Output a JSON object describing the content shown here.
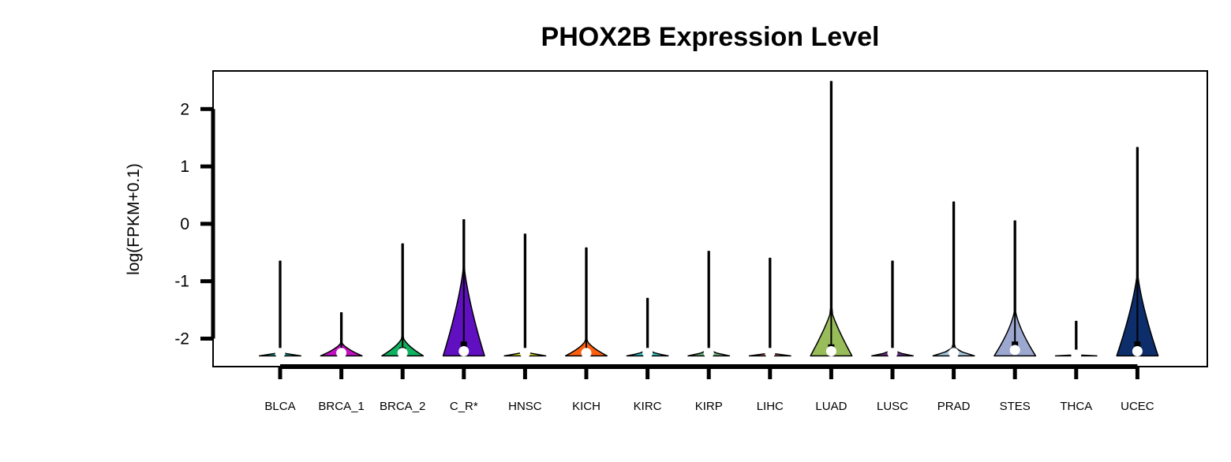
{
  "chart_data": {
    "type": "violin",
    "title": "PHOX2B Expression Level",
    "ylabel": "log(FPKM+0.1)",
    "xlabel": "",
    "ylim": [
      -2.5,
      2.65
    ],
    "yticks": [
      -2,
      -1,
      0,
      1,
      2
    ],
    "grid": false,
    "legend": "none",
    "categories": [
      "BLCA",
      "BRCA_1",
      "BRCA_2",
      "C_R*",
      "HNSC",
      "KICH",
      "KIRC",
      "KIRP",
      "LIHC",
      "LUAD",
      "LUSC",
      "PRAD",
      "STES",
      "THCA",
      "UCEC"
    ],
    "series": [
      {
        "category": "BLCA",
        "color": "#20B2AA",
        "min": -2.3,
        "max": -0.65,
        "median": -2.25,
        "q1": -2.3,
        "q3": -2.25,
        "bulk_top": -2.2,
        "width": 0.82,
        "shape": 2.5
      },
      {
        "category": "BRCA_1",
        "color": "#C010C0",
        "min": -2.3,
        "max": -1.55,
        "median": -2.25,
        "q1": -2.3,
        "q3": -2.25,
        "bulk_top": -2.05,
        "width": 0.82,
        "shape": 1.6
      },
      {
        "category": "BRCA_2",
        "color": "#10B060",
        "min": -2.3,
        "max": -0.35,
        "median": -2.25,
        "q1": -2.3,
        "q3": -2.15,
        "bulk_top": -1.95,
        "width": 0.82,
        "shape": 1.6
      },
      {
        "category": "C_R*",
        "color": "#6010C0",
        "min": -2.3,
        "max": 0.07,
        "median": -2.22,
        "q1": -2.28,
        "q3": -2.05,
        "bulk_top": -0.65,
        "width": 0.82,
        "shape": 1.4
      },
      {
        "category": "HNSC",
        "color": "#F0F020",
        "min": -2.3,
        "max": -0.18,
        "median": -2.25,
        "q1": -2.3,
        "q3": -2.25,
        "bulk_top": -2.2,
        "width": 0.82,
        "shape": 2.5
      },
      {
        "category": "KICH",
        "color": "#FF6010",
        "min": -2.3,
        "max": -0.42,
        "median": -2.25,
        "q1": -2.3,
        "q3": -2.2,
        "bulk_top": -2.0,
        "width": 0.82,
        "shape": 1.6
      },
      {
        "category": "KIRC",
        "color": "#30C8C8",
        "min": -2.3,
        "max": -1.3,
        "median": -2.25,
        "q1": -2.3,
        "q3": -2.25,
        "bulk_top": -2.15,
        "width": 0.82,
        "shape": 2.5
      },
      {
        "category": "KIRP",
        "color": "#70B880",
        "min": -2.3,
        "max": -0.48,
        "median": -2.25,
        "q1": -2.3,
        "q3": -2.25,
        "bulk_top": -2.15,
        "width": 0.82,
        "shape": 2.5
      },
      {
        "category": "LIHC",
        "color": "#E07070",
        "min": -2.3,
        "max": -0.6,
        "median": -2.25,
        "q1": -2.3,
        "q3": -2.25,
        "bulk_top": -2.22,
        "width": 0.82,
        "shape": 3.0
      },
      {
        "category": "LUAD",
        "color": "#98BC5A",
        "min": -2.3,
        "max": 2.48,
        "median": -2.22,
        "q1": -2.28,
        "q3": -2.1,
        "bulk_top": -1.5,
        "width": 0.82,
        "shape": 1.2
      },
      {
        "category": "LUSC",
        "color": "#6A2E8E",
        "min": -2.3,
        "max": -0.65,
        "median": -2.25,
        "q1": -2.3,
        "q3": -2.25,
        "bulk_top": -2.15,
        "width": 0.82,
        "shape": 2.5
      },
      {
        "category": "PRAD",
        "color": "#A8C8DC",
        "min": -2.3,
        "max": 0.38,
        "median": -2.25,
        "q1": -2.3,
        "q3": -2.25,
        "bulk_top": -2.1,
        "width": 0.82,
        "shape": 2.2
      },
      {
        "category": "STES",
        "color": "#9CA8D0",
        "min": -2.3,
        "max": 0.05,
        "median": -2.2,
        "q1": -2.28,
        "q3": -2.05,
        "bulk_top": -1.45,
        "width": 0.82,
        "shape": 1.5
      },
      {
        "category": "THCA",
        "color": "#EEEEEE",
        "min": -2.3,
        "max": -1.7,
        "median": -2.28,
        "q1": -2.3,
        "q3": -2.28,
        "bulk_top": -2.27,
        "width": 0.82,
        "shape": 3.0
      },
      {
        "category": "UCEC",
        "color": "#0D2D6B",
        "min": -2.3,
        "max": 1.33,
        "median": -2.22,
        "q1": -2.28,
        "q3": -2.05,
        "bulk_top": -0.8,
        "width": 0.82,
        "shape": 1.4
      }
    ]
  }
}
